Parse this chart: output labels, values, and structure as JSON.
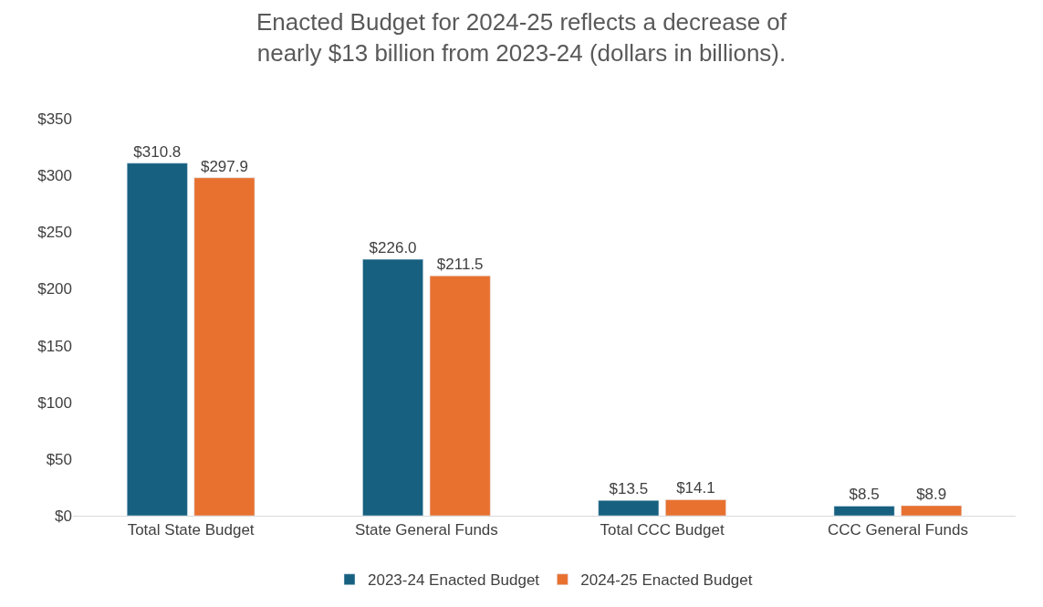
{
  "chart_data": {
    "type": "bar",
    "title": "Enacted Budget for 2024-25 reflects a decrease of\nnearly $13 billion from 2023-24 (dollars in billions).",
    "categories": [
      "Total State Budget",
      "State General Funds",
      "Total CCC Budget",
      "CCC General Funds"
    ],
    "series": [
      {
        "name": "2023-24 Enacted Budget",
        "color": "#17607f",
        "values": [
          310.8,
          226.0,
          13.5,
          8.5
        ],
        "value_labels": [
          "$310.8",
          "$226.0",
          "$13.5",
          "$8.5"
        ]
      },
      {
        "name": "2024-25 Enacted Budget",
        "color": "#e87130",
        "values": [
          297.9,
          211.5,
          14.1,
          8.9
        ],
        "value_labels": [
          "$297.9",
          "$211.5",
          "$14.1",
          "$8.9"
        ]
      }
    ],
    "ylim": [
      0,
      350
    ],
    "yticks": [
      {
        "value": 0,
        "label": "$0"
      },
      {
        "value": 50,
        "label": "$50"
      },
      {
        "value": 100,
        "label": "$100"
      },
      {
        "value": 150,
        "label": "$150"
      },
      {
        "value": 200,
        "label": "$200"
      },
      {
        "value": 250,
        "label": "$250"
      },
      {
        "value": 300,
        "label": "$300"
      },
      {
        "value": 350,
        "label": "$350"
      }
    ],
    "legend": "bottom"
  }
}
